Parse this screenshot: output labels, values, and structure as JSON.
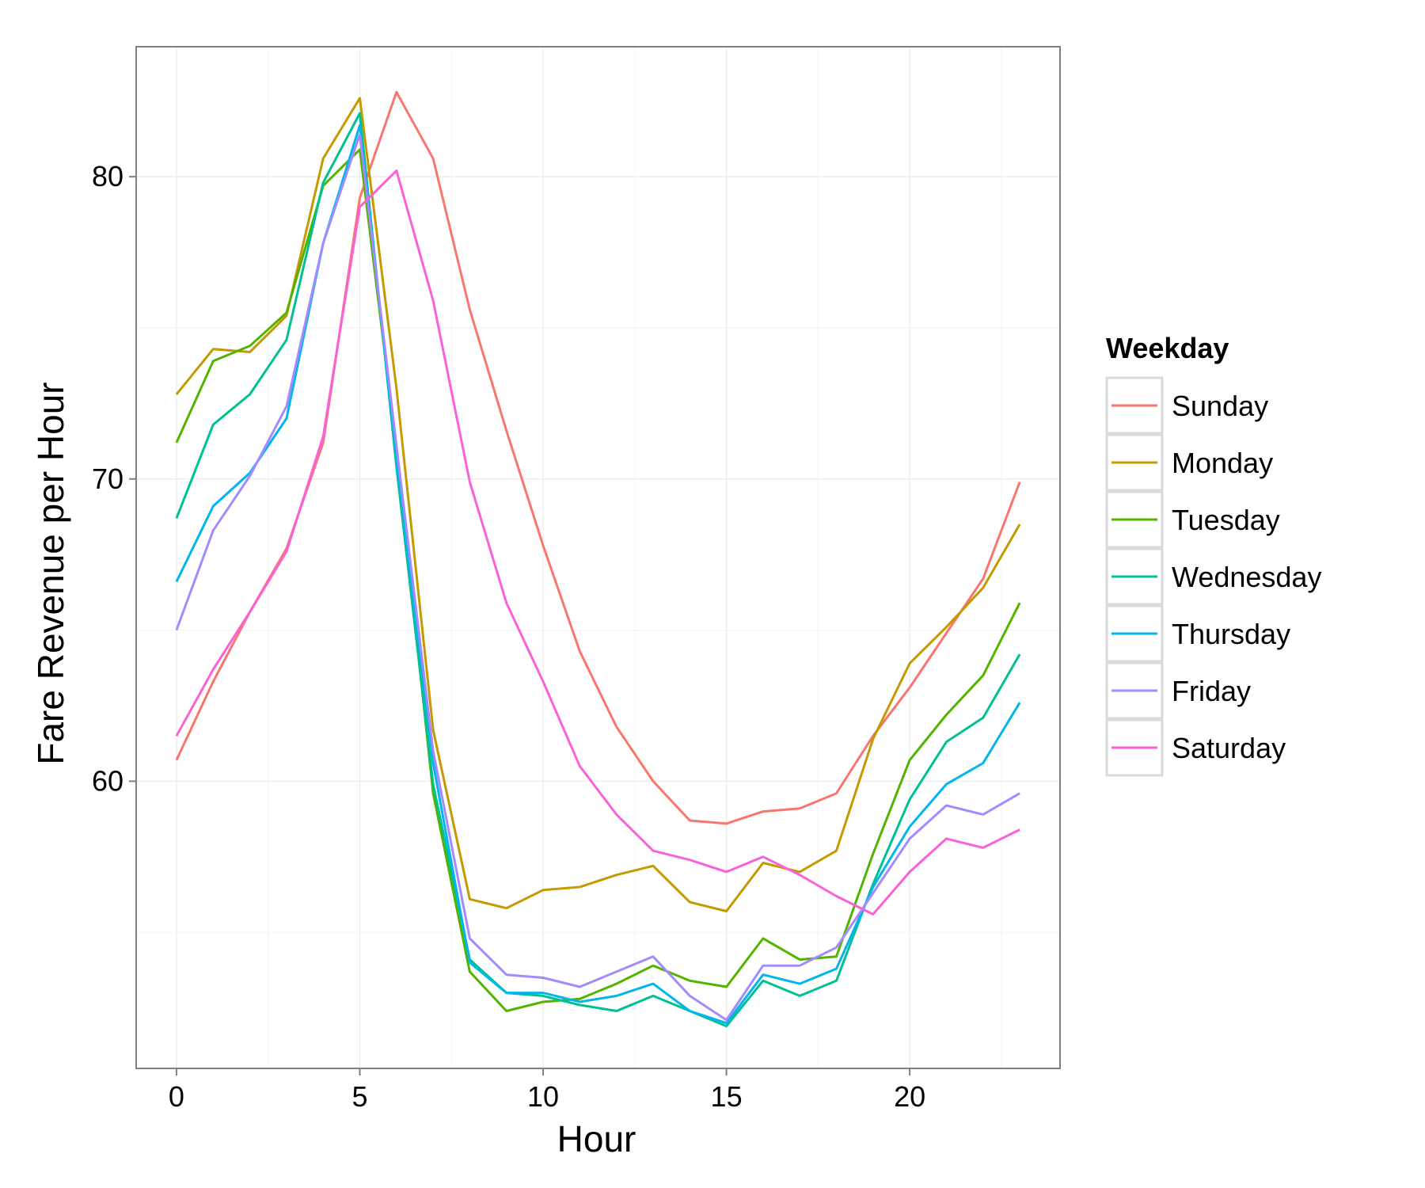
{
  "chart_data": {
    "type": "line",
    "xlabel": "Hour",
    "ylabel": "Fare Revenue per Hour",
    "xlim": [
      -1.1,
      24.1
    ],
    "ylim": [
      50.5,
      84.3
    ],
    "xticks": [
      0,
      5,
      10,
      15,
      20
    ],
    "yticks": [
      60,
      70,
      80
    ],
    "xminor": [
      2.5,
      7.5,
      12.5,
      17.5,
      22.5
    ],
    "yminor": [
      55,
      65,
      75
    ],
    "grid": true,
    "legend": {
      "title": "Weekday",
      "position": "right"
    },
    "x": [
      0,
      1,
      2,
      3,
      4,
      5,
      6,
      7,
      8,
      9,
      10,
      11,
      12,
      13,
      14,
      15,
      16,
      17,
      18,
      19,
      20,
      21,
      22,
      23
    ],
    "series": [
      {
        "name": "Sunday",
        "color": "#F8766D",
        "values": [
          60.7,
          63.3,
          65.6,
          67.7,
          71.2,
          79.3,
          82.8,
          80.6,
          75.6,
          71.6,
          67.8,
          64.3,
          61.8,
          60.0,
          58.7,
          58.6,
          59.0,
          59.1,
          59.6,
          61.5,
          63.1,
          64.9,
          66.7,
          69.9
        ]
      },
      {
        "name": "Monday",
        "color": "#C49A00",
        "values": [
          72.8,
          74.3,
          74.2,
          75.4,
          80.6,
          82.6,
          73.0,
          61.7,
          56.1,
          55.8,
          56.4,
          56.5,
          56.9,
          57.2,
          56.0,
          55.7,
          57.3,
          57.0,
          57.7,
          61.4,
          63.9,
          65.1,
          66.4,
          68.5
        ]
      },
      {
        "name": "Tuesday",
        "color": "#53B400",
        "values": [
          71.2,
          73.9,
          74.4,
          75.5,
          79.7,
          80.9,
          71.0,
          59.6,
          53.7,
          52.4,
          52.7,
          52.8,
          53.3,
          53.9,
          53.4,
          53.2,
          54.8,
          54.1,
          54.2,
          57.6,
          60.7,
          62.2,
          63.5,
          65.9
        ]
      },
      {
        "name": "Wednesday",
        "color": "#00C094",
        "values": [
          68.7,
          71.8,
          72.8,
          74.6,
          79.8,
          82.1,
          70.4,
          59.9,
          54.1,
          53.0,
          52.9,
          52.6,
          52.4,
          52.9,
          52.4,
          51.9,
          53.4,
          52.9,
          53.4,
          56.6,
          59.4,
          61.3,
          62.1,
          64.2
        ]
      },
      {
        "name": "Thursday",
        "color": "#00B6EB",
        "values": [
          66.6,
          69.1,
          70.2,
          72.0,
          77.8,
          81.7,
          70.7,
          60.6,
          54.0,
          53.0,
          53.0,
          52.7,
          52.9,
          53.3,
          52.4,
          52.0,
          53.6,
          53.3,
          53.8,
          56.5,
          58.5,
          59.9,
          60.6,
          62.6
        ]
      },
      {
        "name": "Friday",
        "color": "#A58AFF",
        "values": [
          65.0,
          68.3,
          70.1,
          72.4,
          77.8,
          81.4,
          71.1,
          61.0,
          54.8,
          53.6,
          53.5,
          53.2,
          53.7,
          54.2,
          52.9,
          52.1,
          53.9,
          53.9,
          54.5,
          56.3,
          58.1,
          59.2,
          58.9,
          59.6
        ]
      },
      {
        "name": "Saturday",
        "color": "#FB61D7",
        "values": [
          61.5,
          63.7,
          65.6,
          67.6,
          71.4,
          79.0,
          80.2,
          75.9,
          69.9,
          65.9,
          63.3,
          60.5,
          58.9,
          57.7,
          57.4,
          57.0,
          57.5,
          56.9,
          56.2,
          55.6,
          57.0,
          58.1,
          57.8,
          58.4
        ]
      }
    ]
  }
}
